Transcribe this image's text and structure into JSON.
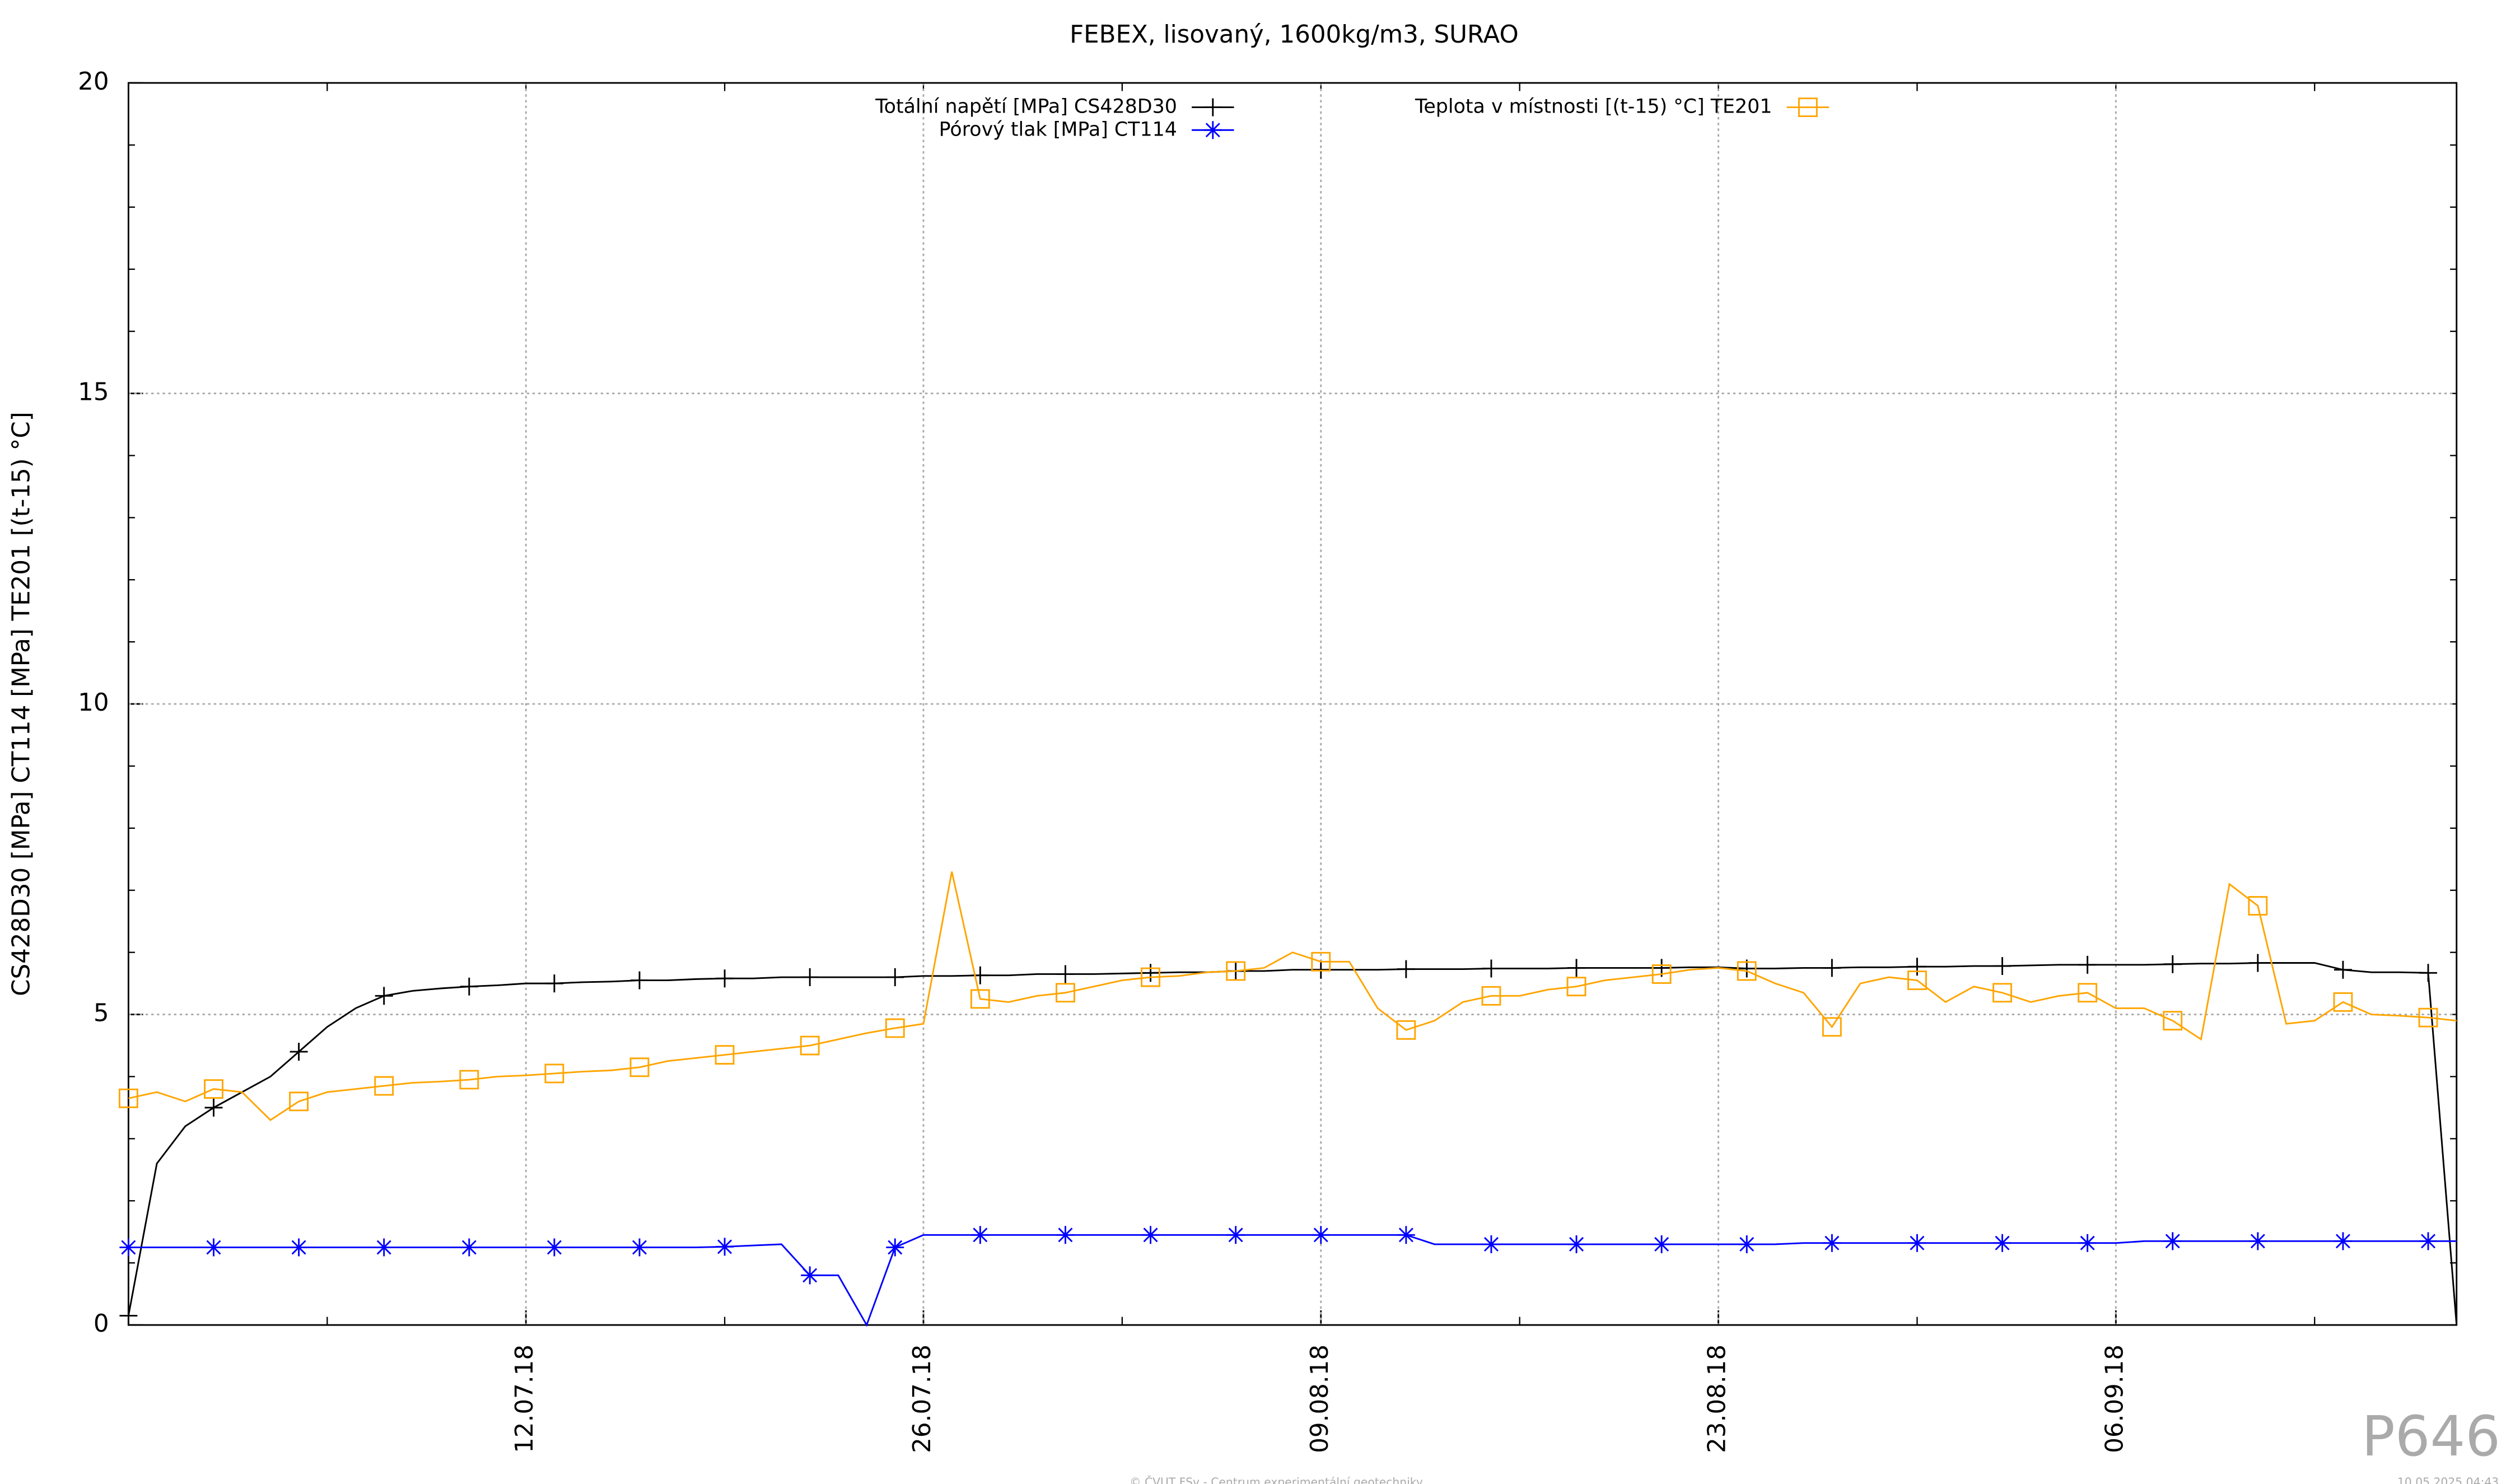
{
  "chart_data": {
    "type": "line",
    "title": "FEBEX, lisovaný, 1600kg/m3, SURAO",
    "y_label": "CS428D30 [MPa] CT114 [MPa] TE201 [(t-15) °C]",
    "annotations": [
      "P646",
      "© ČVUT FSv - Centrum experimentální geotechniky",
      "10.05.2025 04:43"
    ],
    "x": [
      "2018-06-28",
      "2018-06-29",
      "2018-06-30",
      "2018-07-01",
      "2018-07-02",
      "2018-07-03",
      "2018-07-04",
      "2018-07-05",
      "2018-07-06",
      "2018-07-07",
      "2018-07-08",
      "2018-07-09",
      "2018-07-10",
      "2018-07-11",
      "2018-07-12",
      "2018-07-13",
      "2018-07-14",
      "2018-07-15",
      "2018-07-16",
      "2018-07-17",
      "2018-07-18",
      "2018-07-19",
      "2018-07-20",
      "2018-07-21",
      "2018-07-22",
      "2018-07-23",
      "2018-07-24",
      "2018-07-25",
      "2018-07-26",
      "2018-07-27",
      "2018-07-28",
      "2018-07-29",
      "2018-07-30",
      "2018-07-31",
      "2018-08-01",
      "2018-08-02",
      "2018-08-03",
      "2018-08-04",
      "2018-08-05",
      "2018-08-06",
      "2018-08-07",
      "2018-08-08",
      "2018-08-09",
      "2018-08-10",
      "2018-08-11",
      "2018-08-12",
      "2018-08-13",
      "2018-08-14",
      "2018-08-15",
      "2018-08-16",
      "2018-08-17",
      "2018-08-18",
      "2018-08-19",
      "2018-08-20",
      "2018-08-21",
      "2018-08-22",
      "2018-08-23",
      "2018-08-24",
      "2018-08-25",
      "2018-08-26",
      "2018-08-27",
      "2018-08-28",
      "2018-08-29",
      "2018-08-30",
      "2018-08-31",
      "2018-09-01",
      "2018-09-02",
      "2018-09-03",
      "2018-09-04",
      "2018-09-05",
      "2018-09-06",
      "2018-09-07",
      "2018-09-08",
      "2018-09-09",
      "2018-09-10",
      "2018-09-11",
      "2018-09-12",
      "2018-09-13",
      "2018-09-14",
      "2018-09-15",
      "2018-09-16",
      "2018-09-17",
      "2018-09-18"
    ],
    "xlim": [
      "2018-06-28",
      "2018-09-18"
    ],
    "xticks": [
      {
        "value": "2018-07-12",
        "label": "12.07.18"
      },
      {
        "value": "2018-07-26",
        "label": "26.07.18"
      },
      {
        "value": "2018-08-09",
        "label": "09.08.18"
      },
      {
        "value": "2018-08-23",
        "label": "23.08.18"
      },
      {
        "value": "2018-09-06",
        "label": "06.09.18"
      }
    ],
    "ylim": [
      0,
      20
    ],
    "yticks": [
      0,
      5,
      10,
      15,
      20
    ],
    "grid": true,
    "legend": "top",
    "series": [
      {
        "name": "Totální napětí [MPa] CS428D30",
        "color": "#000000",
        "marker": "plus",
        "values": [
          0.15,
          2.6,
          3.2,
          3.5,
          3.75,
          4.0,
          4.4,
          4.8,
          5.1,
          5.3,
          5.38,
          5.42,
          5.45,
          5.47,
          5.5,
          5.5,
          5.52,
          5.53,
          5.55,
          5.55,
          5.57,
          5.58,
          5.58,
          5.6,
          5.6,
          5.6,
          5.6,
          5.6,
          5.62,
          5.62,
          5.63,
          5.63,
          5.65,
          5.65,
          5.65,
          5.66,
          5.67,
          5.68,
          5.68,
          5.7,
          5.7,
          5.72,
          5.72,
          5.72,
          5.72,
          5.73,
          5.73,
          5.73,
          5.74,
          5.74,
          5.74,
          5.75,
          5.75,
          5.75,
          5.75,
          5.76,
          5.76,
          5.74,
          5.74,
          5.75,
          5.75,
          5.76,
          5.76,
          5.77,
          5.77,
          5.78,
          5.78,
          5.79,
          5.8,
          5.8,
          5.8,
          5.8,
          5.81,
          5.82,
          5.82,
          5.83,
          5.83,
          5.83,
          5.72,
          5.68,
          5.68,
          5.67,
          0
        ]
      },
      {
        "name": "Pórový tlak [MPa] CT114",
        "color": "#0000ff",
        "marker": "star",
        "values": [
          1.25,
          1.25,
          1.25,
          1.25,
          1.25,
          1.25,
          1.25,
          1.25,
          1.25,
          1.25,
          1.25,
          1.25,
          1.25,
          1.25,
          1.25,
          1.25,
          1.25,
          1.25,
          1.25,
          1.25,
          1.25,
          1.26,
          1.28,
          1.3,
          0.8,
          0.8,
          0,
          1.25,
          1.45,
          1.45,
          1.45,
          1.45,
          1.45,
          1.45,
          1.45,
          1.45,
          1.45,
          1.45,
          1.45,
          1.45,
          1.45,
          1.45,
          1.45,
          1.45,
          1.45,
          1.45,
          1.3,
          1.3,
          1.3,
          1.3,
          1.3,
          1.3,
          1.3,
          1.3,
          1.3,
          1.3,
          1.3,
          1.3,
          1.3,
          1.32,
          1.32,
          1.32,
          1.32,
          1.32,
          1.32,
          1.32,
          1.32,
          1.32,
          1.32,
          1.32,
          1.32,
          1.35,
          1.35,
          1.35,
          1.35,
          1.35,
          1.35,
          1.35,
          1.35,
          1.35,
          1.35,
          1.35,
          1.35
        ]
      },
      {
        "name": "Teplota v místnosti [(t-15) °C] TE201",
        "color": "#ffa500",
        "marker": "square",
        "values": [
          3.65,
          3.75,
          3.6,
          3.8,
          3.75,
          3.3,
          3.6,
          3.75,
          3.8,
          3.85,
          3.9,
          3.92,
          3.95,
          4.0,
          4.02,
          4.05,
          4.08,
          4.1,
          4.15,
          4.25,
          4.3,
          4.35,
          4.4,
          4.45,
          4.5,
          4.6,
          4.7,
          4.78,
          4.85,
          7.3,
          5.25,
          5.2,
          5.3,
          5.35,
          5.45,
          5.55,
          5.6,
          5.62,
          5.68,
          5.7,
          5.75,
          6.0,
          5.85,
          5.85,
          5.1,
          4.75,
          4.9,
          5.2,
          5.3,
          5.3,
          5.4,
          5.45,
          5.55,
          5.6,
          5.65,
          5.72,
          5.75,
          5.7,
          5.5,
          5.35,
          4.8,
          5.5,
          5.6,
          5.55,
          5.2,
          5.45,
          5.35,
          5.2,
          5.3,
          5.35,
          5.1,
          5.1,
          4.9,
          4.6,
          7.1,
          6.75,
          4.85,
          4.9,
          5.2,
          5.0,
          4.98,
          4.95,
          4.9
        ]
      }
    ]
  }
}
